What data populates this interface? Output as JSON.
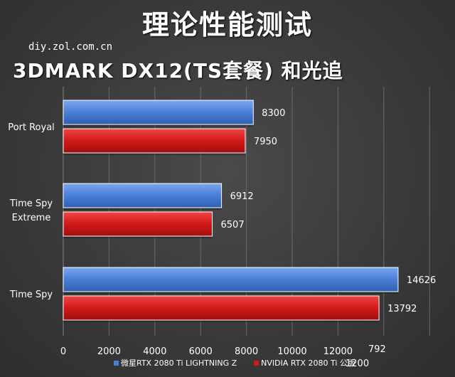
{
  "header": {
    "title": "理论性能测试",
    "source": "diy.zol.com.cn",
    "subtitle": "3DMARK DX12(TS套餐) 和光追"
  },
  "overlay": {
    "text_a": "792",
    "text_b": "1200"
  },
  "colors": {
    "blue": "#4a7fd6",
    "red": "#d21919",
    "grid": "#6a6a6a",
    "text": "#ffffff"
  },
  "chart_data": {
    "type": "bar",
    "orientation": "horizontal",
    "categories": [
      "Port Royal",
      "Time Spy\nExtreme",
      "Time Spy"
    ],
    "series": [
      {
        "name": "微星RTX 2080 Ti LIGHTNING Z",
        "values": [
          8300,
          6912,
          14626
        ]
      },
      {
        "name": "NVIDIA RTX 2080 Ti 公版",
        "values": [
          7950,
          6507,
          13792
        ]
      }
    ],
    "xlim": [
      0,
      16000
    ],
    "xticks": [
      "0",
      "2000",
      "4000",
      "6000",
      "8000",
      "10000",
      "12000"
    ],
    "grid": true,
    "legend_position": "bottom"
  }
}
